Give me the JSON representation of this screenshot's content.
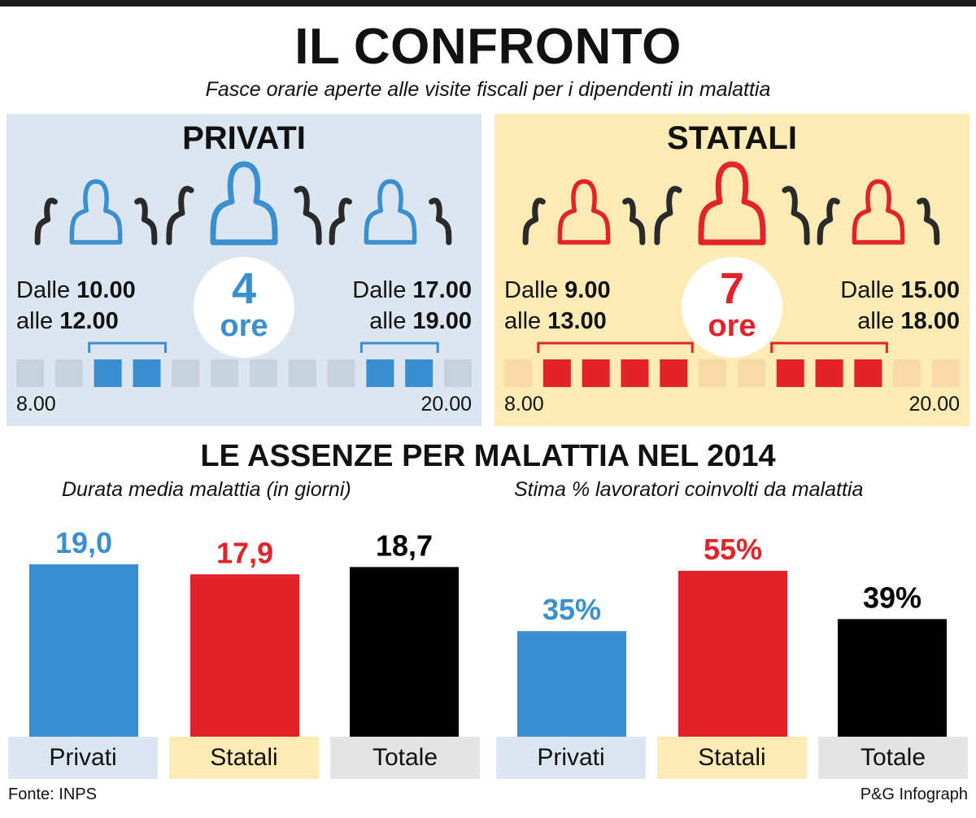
{
  "title": "IL CONFRONTO",
  "subtitle": "Fasce orarie aperte alle visite fiscali per i dipendenti in malattia",
  "panels": [
    {
      "name": "PRIVATI",
      "accent": "#3a8fd0",
      "inactive_square": "#c6d2dc",
      "morning": {
        "from_label": "Dalle",
        "from": "10.00",
        "to_label": "alle",
        "to": "12.00"
      },
      "afternoon": {
        "from_label": "Dalle",
        "from": "17.00",
        "to_label": "alle",
        "to": "19.00"
      },
      "hours": "4",
      "hours_unit": "ore",
      "scale_start": "8.00",
      "scale_end": "20.00",
      "open_hours": [
        10,
        11,
        17,
        18
      ]
    },
    {
      "name": "STATALI",
      "accent": "#e32229",
      "inactive_square": "#f8d9aa",
      "morning": {
        "from_label": "Dalle",
        "from": "9.00",
        "to_label": "alle",
        "to": "13.00"
      },
      "afternoon": {
        "from_label": "Dalle",
        "from": "15.00",
        "to_label": "alle",
        "to": "18.00"
      },
      "hours": "7",
      "hours_unit": "ore",
      "scale_start": "8.00",
      "scale_end": "20.00",
      "open_hours": [
        9,
        10,
        11,
        12,
        15,
        16,
        17
      ]
    }
  ],
  "section_title": "LE ASSENZE PER MALATTIA NEL 2014",
  "chart_data": [
    {
      "type": "bar",
      "title": "Durata media malattia (in giorni)",
      "categories": [
        "Privati",
        "Statali",
        "Totale"
      ],
      "values": [
        19.0,
        17.9,
        18.7
      ],
      "value_labels": [
        "19,0",
        "17,9",
        "18,7"
      ],
      "colors": [
        "#3a8fd0",
        "#e32229",
        "#000000"
      ],
      "label_colors": [
        "#3a8fd0",
        "#e32229",
        "#000000"
      ]
    },
    {
      "type": "bar",
      "title": "Stima % lavoratori coinvolti da malattia",
      "categories": [
        "Privati",
        "Statali",
        "Totale"
      ],
      "values": [
        35,
        55,
        39
      ],
      "value_labels": [
        "35%",
        "55%",
        "39%"
      ],
      "colors": [
        "#3a8fd0",
        "#e32229",
        "#000000"
      ],
      "label_colors": [
        "#3a8fd0",
        "#e32229",
        "#000000"
      ]
    }
  ],
  "category_box_colors": [
    "#dce6f0",
    "#fcebb5",
    "#e4e4e4"
  ],
  "footer": {
    "source": "Fonte: INPS",
    "credit": "P&G Infograph"
  }
}
